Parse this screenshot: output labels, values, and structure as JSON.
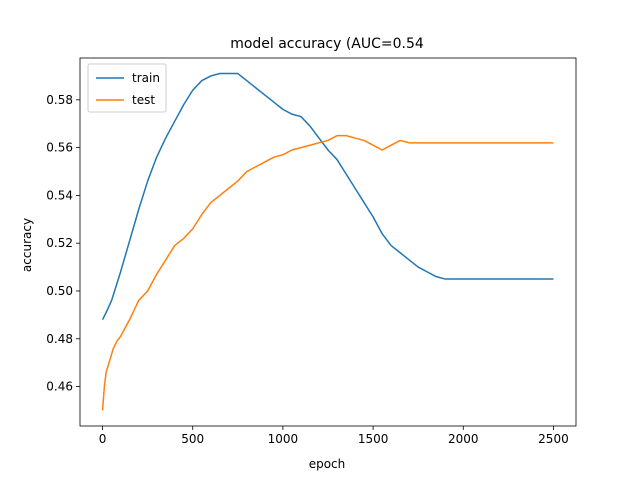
{
  "chart_data": {
    "type": "line",
    "title": "model accuracy (AUC=0.54",
    "xlabel": "epoch",
    "ylabel": "accuracy",
    "xlim": [
      -125,
      2625
    ],
    "ylim": [
      0.4435,
      0.5975
    ],
    "xticks": [
      0,
      500,
      1000,
      1500,
      2000,
      2500
    ],
    "yticks": [
      0.46,
      0.48,
      0.5,
      0.52,
      0.54,
      0.56,
      0.58
    ],
    "ytick_labels": [
      "0.46",
      "0.48",
      "0.50",
      "0.52",
      "0.54",
      "0.56",
      "0.58"
    ],
    "xtick_labels": [
      "0",
      "500",
      "1000",
      "1500",
      "2000",
      "2500"
    ],
    "legend_position": "top-left",
    "grid": false,
    "series": [
      {
        "name": "train",
        "color": "#1f77b4",
        "x": [
          0,
          20,
          50,
          100,
          150,
          200,
          250,
          300,
          350,
          400,
          450,
          500,
          550,
          600,
          650,
          700,
          750,
          800,
          850,
          900,
          950,
          1000,
          1050,
          1100,
          1150,
          1200,
          1250,
          1300,
          1350,
          1400,
          1450,
          1500,
          1550,
          1600,
          1650,
          1700,
          1750,
          1800,
          1850,
          1900,
          2000,
          2100,
          2200,
          2300,
          2400,
          2500
        ],
        "y": [
          0.488,
          0.491,
          0.496,
          0.508,
          0.521,
          0.534,
          0.546,
          0.556,
          0.564,
          0.571,
          0.578,
          0.584,
          0.588,
          0.59,
          0.591,
          0.591,
          0.591,
          0.588,
          0.585,
          0.582,
          0.579,
          0.576,
          0.574,
          0.573,
          0.569,
          0.564,
          0.559,
          0.555,
          0.549,
          0.543,
          0.537,
          0.531,
          0.524,
          0.519,
          0.516,
          0.513,
          0.51,
          0.508,
          0.506,
          0.505,
          0.505,
          0.505,
          0.505,
          0.505,
          0.505,
          0.505
        ]
      },
      {
        "name": "test",
        "color": "#ff7f0e",
        "x": [
          0,
          10,
          20,
          40,
          60,
          80,
          100,
          150,
          200,
          250,
          300,
          350,
          400,
          450,
          500,
          550,
          600,
          650,
          700,
          750,
          800,
          850,
          900,
          950,
          1000,
          1050,
          1100,
          1150,
          1200,
          1250,
          1300,
          1350,
          1400,
          1450,
          1500,
          1550,
          1600,
          1650,
          1700,
          1750,
          1800,
          1850,
          1900,
          2000,
          2100,
          2200,
          2300,
          2400,
          2500
        ],
        "y": [
          0.45,
          0.46,
          0.466,
          0.471,
          0.476,
          0.479,
          0.481,
          0.488,
          0.496,
          0.5,
          0.507,
          0.513,
          0.519,
          0.522,
          0.526,
          0.532,
          0.537,
          0.54,
          0.543,
          0.546,
          0.55,
          0.552,
          0.554,
          0.556,
          0.557,
          0.559,
          0.56,
          0.561,
          0.562,
          0.563,
          0.565,
          0.565,
          0.564,
          0.563,
          0.561,
          0.559,
          0.561,
          0.563,
          0.562,
          0.562,
          0.562,
          0.562,
          0.562,
          0.562,
          0.562,
          0.562,
          0.562,
          0.562,
          0.562
        ]
      }
    ]
  }
}
